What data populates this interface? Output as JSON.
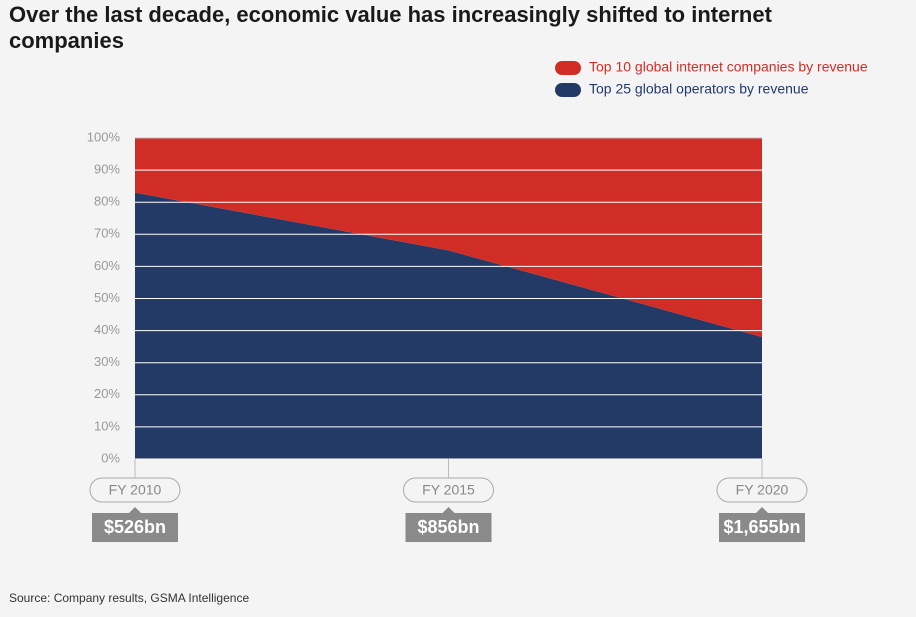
{
  "chart_data": {
    "type": "stacked_area",
    "title": "Over the last decade, economic value has increasingly shifted to internet companies",
    "categories": [
      "FY 2010",
      "FY 2015",
      "FY 2020"
    ],
    "series": [
      {
        "name": "Top 10 global internet companies by revenue",
        "color": "#d12d27",
        "values": [
          17,
          35,
          62
        ]
      },
      {
        "name": "Top 25 global operators by revenue",
        "color": "#233a67",
        "values": [
          83,
          65,
          38
        ]
      }
    ],
    "annotations": [
      "$526bn",
      "$856bn",
      "$1,655bn"
    ],
    "ylim": [
      0,
      100
    ],
    "yticks": [
      {
        "value": 0,
        "label": "0%"
      },
      {
        "value": 10,
        "label": "10%"
      },
      {
        "value": 20,
        "label": "20%"
      },
      {
        "value": 30,
        "label": "30%"
      },
      {
        "value": 40,
        "label": "40%"
      },
      {
        "value": 50,
        "label": "50%"
      },
      {
        "value": 60,
        "label": "60%"
      },
      {
        "value": 70,
        "label": "70%"
      },
      {
        "value": 80,
        "label": "80%"
      },
      {
        "value": 90,
        "label": "90%"
      },
      {
        "value": 100,
        "label": "100%"
      }
    ],
    "grid": true,
    "legend": "top-right",
    "source": "Source: Company results, GSMA Intelligence"
  }
}
